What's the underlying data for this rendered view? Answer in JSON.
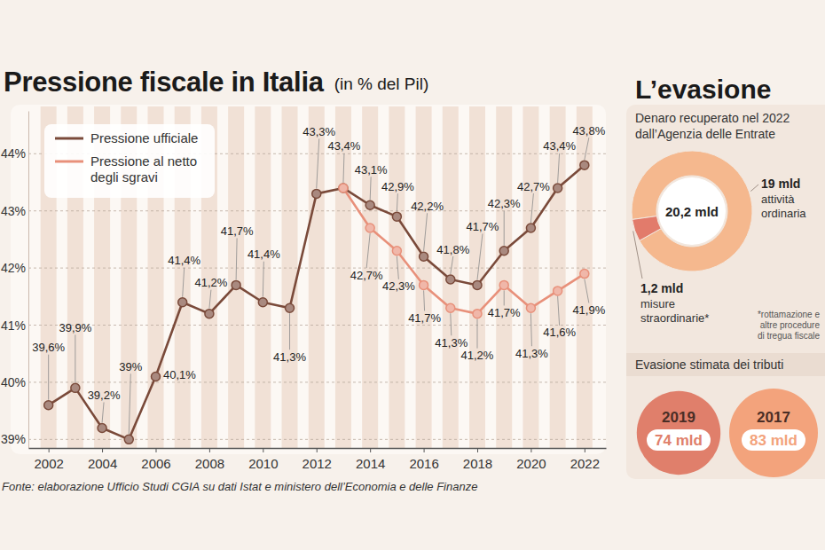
{
  "chart_data": [
    {
      "type": "line",
      "title": "Pressione fiscale in Italia",
      "subtitle": "(in % del Pil)",
      "x": [
        2002,
        2003,
        2004,
        2005,
        2006,
        2007,
        2008,
        2009,
        2010,
        2011,
        2012,
        2013,
        2014,
        2015,
        2016,
        2017,
        2018,
        2019,
        2020,
        2021,
        2022
      ],
      "xlim": [
        2001.25,
        2022.8
      ],
      "xticks": [
        2002,
        2004,
        2006,
        2008,
        2010,
        2012,
        2014,
        2016,
        2018,
        2020,
        2022
      ],
      "ylim": [
        38.85,
        44.75
      ],
      "yticks": [
        {
          "value": 39,
          "label": "39%"
        },
        {
          "value": 40,
          "label": "40%"
        },
        {
          "value": 41,
          "label": "41%"
        },
        {
          "value": 42,
          "label": "42%"
        },
        {
          "value": 43,
          "label": "43%"
        },
        {
          "value": 44,
          "label": "44%"
        }
      ],
      "grid": true,
      "legend": "top-left",
      "data_labels": true,
      "series": [
        {
          "name": "Pressione ufficiale",
          "color": "#7a4a3a",
          "marker": "circle",
          "values": [
            39.6,
            39.9,
            39.2,
            39,
            40.1,
            41.4,
            41.2,
            41.7,
            41.4,
            41.3,
            43.3,
            43.4,
            43.1,
            42.9,
            42.2,
            41.8,
            41.7,
            42.3,
            42.7,
            43.4,
            43.8
          ],
          "value_labels": [
            "39,6%",
            "39,9%",
            "39,2%",
            "39%",
            "40,1%",
            "41,4%",
            "41,2%",
            "41,7%",
            "41,4%",
            "41,3%",
            "43,3%",
            "43,4%",
            "43,1%",
            "42,9%",
            "42,2%",
            "41,8%",
            "41,7%",
            "42,3%",
            "42,7%",
            "43,4%",
            "43,8%"
          ]
        },
        {
          "name": "Pressione al netto degli sgravi",
          "color": "#e8907a",
          "marker": "circle",
          "values": [
            null,
            null,
            null,
            null,
            null,
            null,
            null,
            null,
            null,
            null,
            null,
            43.4,
            42.7,
            42.3,
            41.7,
            41.3,
            41.2,
            41.7,
            41.3,
            41.6,
            41.9
          ],
          "value_labels": [
            null,
            null,
            null,
            null,
            null,
            null,
            null,
            null,
            null,
            null,
            null,
            null,
            "42,7%",
            "42,3%",
            "41,7%",
            "41,3%",
            "41,2%",
            "41,7%",
            "41,3%",
            "41,6%",
            "41,9%"
          ]
        }
      ],
      "source": "Fonte: elaborazione Ufficio Studi CGIA su dati Istat e ministero dell’Economia e delle Finanze"
    },
    {
      "type": "donut",
      "heading": "L’evasione",
      "title": "Denaro recuperato nel 2022 dall’Agenzia delle Entrate",
      "categories": [
        "attività ordinaria",
        "misure straordinarie*"
      ],
      "values": [
        19,
        1.2
      ],
      "value_labels": [
        "19 mld",
        "1,2 mld"
      ],
      "colors": [
        "#f5b88e",
        "#e27b6b"
      ],
      "center_label": "20,2 mld",
      "data_labels": true,
      "footnote": "*rottamazione e altre procedure di tregua fiscale"
    },
    {
      "type": "circle",
      "title": "Evasione stimata dei tributi",
      "categories": [
        "2019",
        "2017"
      ],
      "values": [
        74,
        83
      ],
      "value_labels": [
        "74 mld",
        "83 mld"
      ],
      "colors": [
        "#e07f6b",
        "#f3a37c"
      ],
      "data_labels": true
    }
  ]
}
